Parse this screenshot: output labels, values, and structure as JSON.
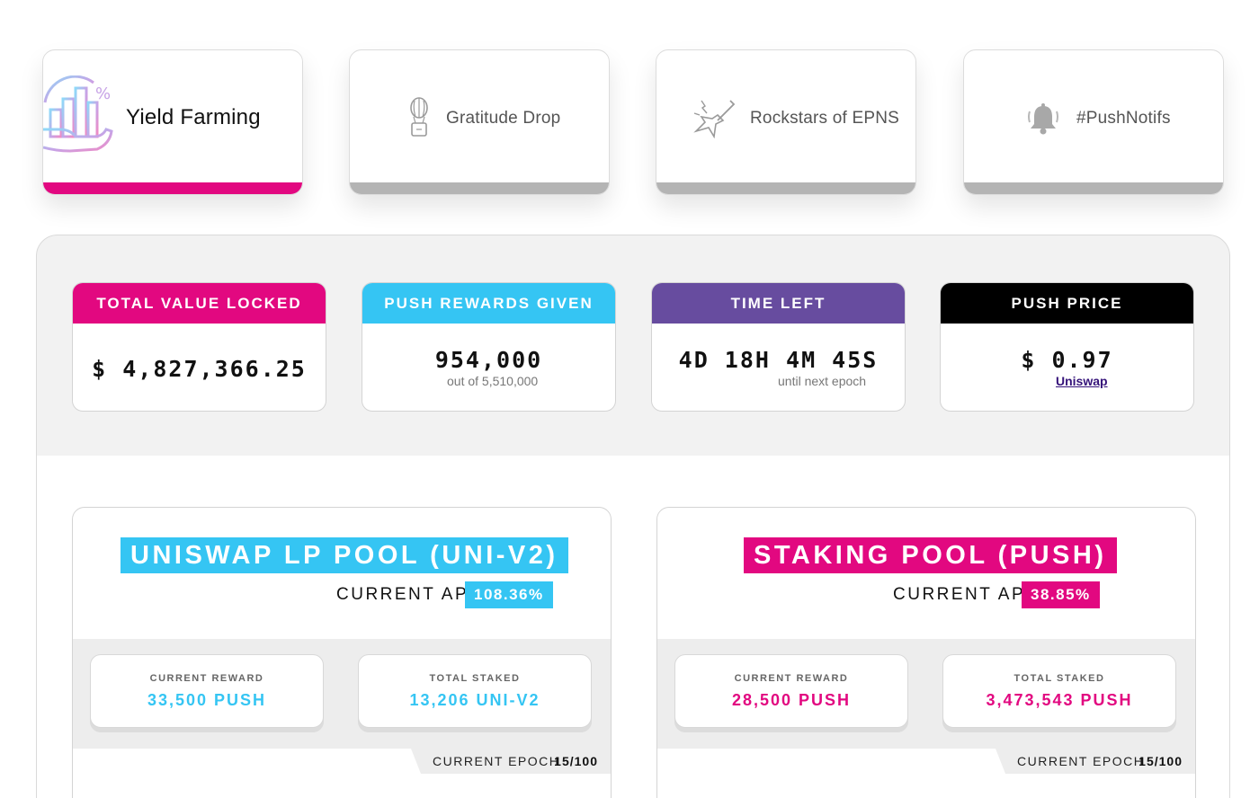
{
  "colors": {
    "pink": "#e20880",
    "cyan": "#35c5f3",
    "purple": "#674c9f",
    "black": "#000000",
    "tab_inactive_bar": "#b4b4b4"
  },
  "tabs": [
    {
      "label": "Yield Farming",
      "icon": "yield-farming-icon",
      "active": true
    },
    {
      "label": "Gratitude Drop",
      "icon": "air-balloon-icon",
      "active": false
    },
    {
      "label": "Rockstars of EPNS",
      "icon": "guitar-icon",
      "active": false
    },
    {
      "label": "#PushNotifs",
      "icon": "bell-icon",
      "active": false
    }
  ],
  "stats": {
    "tvl": {
      "label": "TOTAL VALUE LOCKED",
      "value": "$ 4,827,366.25"
    },
    "rewards": {
      "label": "PUSH REWARDS GIVEN",
      "value": "954,000",
      "sub": "out of 5,510,000"
    },
    "time": {
      "label": "TIME LEFT",
      "value": "4D 18H 4M 45S",
      "sub": "until next epoch"
    },
    "price": {
      "label": "PUSH PRICE",
      "value": "$ 0.97",
      "link": "Uniswap"
    }
  },
  "pools": [
    {
      "title": "UNISWAP LP POOL (UNI-V2)",
      "apr_label": "CURRENT APR",
      "apr_value": "108.36%",
      "reward_label": "CURRENT REWARD",
      "reward_value": "33,500 PUSH",
      "staked_label": "TOTAL STAKED",
      "staked_value": "13,206 UNI-V2",
      "epoch_label": "CURRENT EPOCH",
      "epoch_value": "15/100"
    },
    {
      "title": "STAKING POOL (PUSH)",
      "apr_label": "CURRENT APR",
      "apr_value": "38.85%",
      "reward_label": "CURRENT REWARD",
      "reward_value": "28,500 PUSH",
      "staked_label": "TOTAL STAKED",
      "staked_value": "3,473,543 PUSH",
      "epoch_label": "CURRENT EPOCH",
      "epoch_value": "15/100"
    }
  ]
}
